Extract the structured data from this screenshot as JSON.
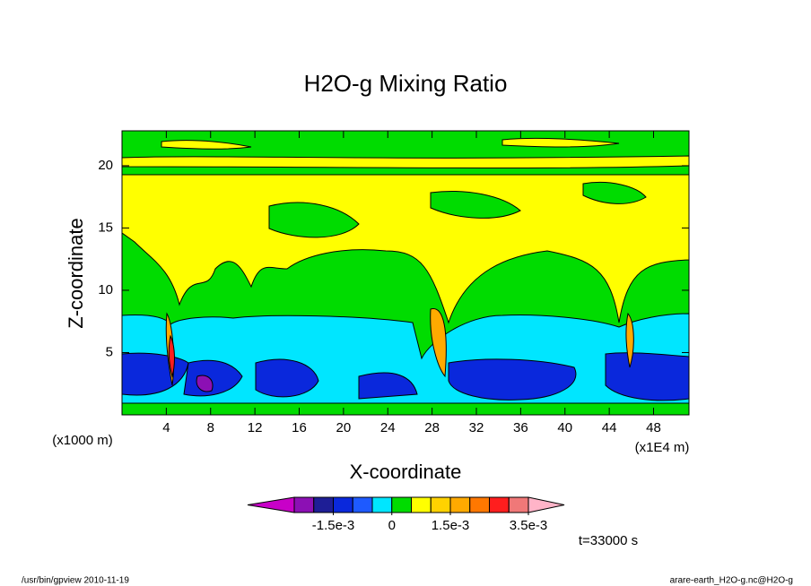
{
  "chart_data": {
    "type": "contour",
    "title": "H2O-g Mixing Ratio",
    "x_label": "X-coordinate",
    "y_label": "Z-coordinate",
    "x_unit": "(x1E4 m)",
    "y_unit": "(x1000 m)",
    "xlim": [
      0,
      51.2
    ],
    "ylim": [
      0,
      22.8
    ],
    "xticks": [
      4,
      8,
      12,
      16,
      20,
      24,
      28,
      32,
      36,
      40,
      44,
      48
    ],
    "yticks": [
      5,
      10,
      15,
      20
    ],
    "colorbar": {
      "levels": [
        -0.0025,
        -0.002,
        -0.0015,
        -0.001,
        -0.0005,
        0,
        0.0005,
        0.001,
        0.0015,
        0.002,
        0.0025,
        0.003,
        0.0035
      ],
      "colors": [
        "#8c10b4",
        "#1e1e96",
        "#0a28dc",
        "#1e5aff",
        "#00e6ff",
        "#00dc00",
        "#ffff00",
        "#ffd200",
        "#ffaa00",
        "#ff7800",
        "#ff1e1e",
        "#f07878"
      ],
      "under_color": "#c800c8",
      "over_color": "#ffb4c8",
      "ticks": [
        {
          "value": -0.0015,
          "label": "-1.5e-3"
        },
        {
          "value": 0,
          "label": "0"
        },
        {
          "value": 0.0015,
          "label": "1.5e-3"
        },
        {
          "value": 0.0035,
          "label": "3.5e-3"
        }
      ]
    },
    "time_label": "t=33000 s",
    "footer_left": "/usr/bin/gpview  2010-11-19",
    "footer_right": "arare-earth_H2O-g.nc@H2O-g"
  }
}
